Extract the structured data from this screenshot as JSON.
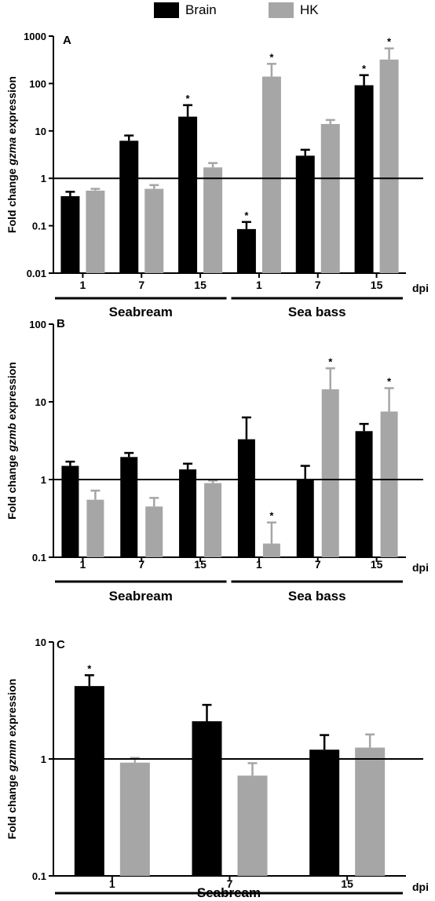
{
  "colors": {
    "brain": "#000000",
    "hk": "#a6a6a6"
  },
  "legend": [
    {
      "label": "Brain",
      "color": "#000000"
    },
    {
      "label": "HK",
      "color": "#a6a6a6"
    }
  ],
  "chart_data": [
    {
      "type": "bar",
      "panel_label": "A",
      "ylabel_prefix": "Fold change ",
      "ylabel_gene": "gzma",
      "ylabel_suffix": " expression",
      "yscale": "log",
      "ylim": [
        0.01,
        1000
      ],
      "yticks": [
        "0.01",
        "0.1",
        "1",
        "10",
        "100",
        "1000"
      ],
      "reference_line": 1,
      "xunit": "dpi",
      "categories": [
        "1",
        "7",
        "15",
        "1",
        "7",
        "15"
      ],
      "groups": [
        {
          "label": "Seabream",
          "span": [
            0,
            2
          ]
        },
        {
          "label": "Sea bass",
          "span": [
            3,
            5
          ]
        }
      ],
      "series": [
        {
          "name": "Brain",
          "values": [
            0.42,
            6.2,
            20,
            0.085,
            3.0,
            92
          ],
          "errors": [
            0.52,
            8.0,
            35,
            0.12,
            4.0,
            150
          ],
          "sig": [
            false,
            false,
            true,
            true,
            false,
            true
          ]
        },
        {
          "name": "HK",
          "values": [
            0.55,
            0.6,
            1.7,
            140,
            14,
            320
          ],
          "errors": [
            0.6,
            0.72,
            2.1,
            260,
            17,
            550
          ],
          "sig": [
            false,
            false,
            false,
            true,
            false,
            true
          ]
        }
      ]
    },
    {
      "type": "bar",
      "panel_label": "B",
      "ylabel_prefix": "Fold change ",
      "ylabel_gene": "gzmb",
      "ylabel_suffix": " expression",
      "yscale": "log",
      "ylim": [
        0.1,
        100
      ],
      "yticks": [
        "0.1",
        "1",
        "10",
        "100"
      ],
      "reference_line": 1,
      "xunit": "dpi",
      "categories": [
        "1",
        "7",
        "15",
        "1",
        "7",
        "15"
      ],
      "groups": [
        {
          "label": "Seabream",
          "span": [
            0,
            2
          ]
        },
        {
          "label": "Sea bass",
          "span": [
            3,
            5
          ]
        }
      ],
      "series": [
        {
          "name": "Brain",
          "values": [
            1.5,
            1.95,
            1.35,
            3.3,
            1.0,
            4.2
          ],
          "errors": [
            1.7,
            2.2,
            1.6,
            6.3,
            1.5,
            5.2
          ],
          "sig": [
            false,
            false,
            false,
            false,
            false,
            false
          ]
        },
        {
          "name": "HK",
          "values": [
            0.55,
            0.45,
            0.9,
            0.15,
            14.5,
            7.5
          ],
          "errors": [
            0.72,
            0.58,
            0.97,
            0.28,
            27,
            15
          ],
          "sig": [
            false,
            false,
            false,
            true,
            true,
            true
          ]
        }
      ]
    },
    {
      "type": "bar",
      "panel_label": "C",
      "ylabel_prefix": "Fold change ",
      "ylabel_gene": "gzmm",
      "ylabel_suffix": " expression",
      "yscale": "log",
      "ylim": [
        0.1,
        10
      ],
      "yticks": [
        "0.1",
        "1",
        "10"
      ],
      "reference_line": 1,
      "xunit": "dpi",
      "categories": [
        "1",
        "7",
        "15"
      ],
      "groups": [
        {
          "label": "Seabream",
          "span": [
            0,
            2
          ]
        }
      ],
      "series": [
        {
          "name": "Brain",
          "values": [
            4.2,
            2.1,
            1.2
          ],
          "errors": [
            5.2,
            2.9,
            1.6
          ],
          "sig": [
            true,
            false,
            false
          ]
        },
        {
          "name": "HK",
          "values": [
            0.93,
            0.72,
            1.25
          ],
          "errors": [
            1.02,
            0.92,
            1.62
          ],
          "sig": [
            false,
            false,
            false
          ]
        }
      ]
    }
  ]
}
